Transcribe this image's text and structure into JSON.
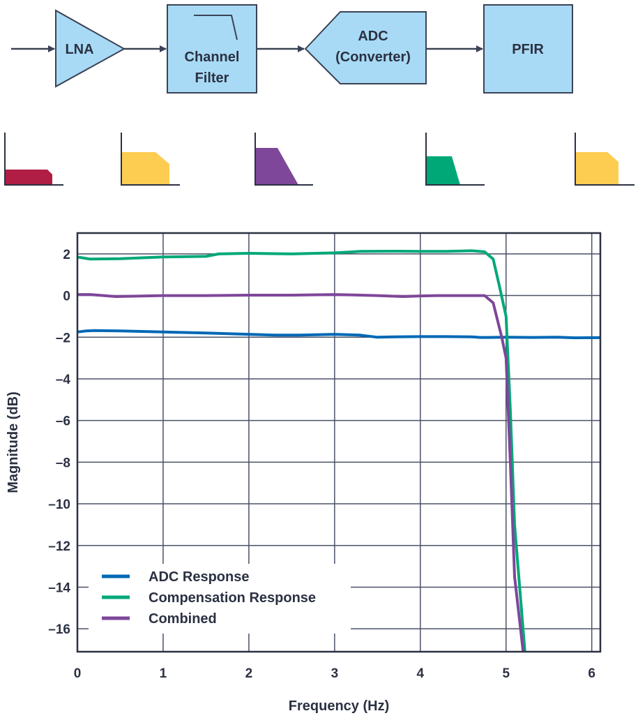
{
  "block_diagram": {
    "blocks": [
      {
        "id": "lna",
        "lines": [
          "LNA"
        ]
      },
      {
        "id": "channel-filter",
        "lines": [
          "Channel",
          "Filter"
        ]
      },
      {
        "id": "adc",
        "lines": [
          "ADC",
          "(Converter)"
        ]
      },
      {
        "id": "pfir",
        "lines": [
          "PFIR"
        ]
      }
    ],
    "block_fill": "#a8daf5",
    "block_stroke": "#3a4256"
  },
  "response_sketches": [
    {
      "id": "lna",
      "color": "#b01e45"
    },
    {
      "id": "channel-filter",
      "color": "#fdcd52"
    },
    {
      "id": "adc",
      "color": "#7e479a"
    },
    {
      "id": "pfir-input",
      "color": "#00a878"
    },
    {
      "id": "pfir-output",
      "color": "#fdcd52"
    }
  ],
  "chart_data": {
    "type": "line",
    "xlabel": "Frequency (Hz)",
    "ylabel": "Magnitude (dB)",
    "xlim": [
      0,
      6.1
    ],
    "ylim": [
      -17.1,
      3.0
    ],
    "xticks": [
      0,
      1,
      2,
      3,
      4,
      5,
      6
    ],
    "yticks": [
      2,
      0,
      -2,
      -4,
      -6,
      -8,
      -10,
      -12,
      -14,
      -16
    ],
    "tick_labels": {
      "x": [
        "0",
        "1",
        "2",
        "3",
        "4",
        "5",
        "6"
      ],
      "y": [
        "2",
        "0",
        "–2",
        "–4",
        "–6",
        "–8",
        "–10",
        "–12",
        "–14",
        "–16"
      ]
    },
    "grid": true,
    "legend_position": "bottom-left",
    "series": [
      {
        "name": "ADC Response",
        "color": "#0068b5",
        "x": [
          0,
          0.1,
          0.2,
          0.5,
          1.0,
          1.5,
          2.0,
          2.3,
          2.6,
          3.0,
          3.3,
          3.5,
          3.7,
          4.0,
          4.3,
          4.6,
          4.7,
          4.8,
          5.0,
          5.3,
          5.6,
          5.8,
          6.1
        ],
        "y": [
          -1.75,
          -1.7,
          -1.68,
          -1.7,
          -1.75,
          -1.8,
          -1.86,
          -1.9,
          -1.9,
          -1.86,
          -1.9,
          -2.0,
          -1.98,
          -1.97,
          -1.97,
          -1.98,
          -2.01,
          -2.01,
          -2.0,
          -2.01,
          -2.0,
          -2.03,
          -2.02
        ]
      },
      {
        "name": "Compensation Response",
        "color": "#00a878",
        "x": [
          0,
          0.15,
          0.5,
          1.0,
          1.5,
          1.65,
          2.0,
          2.5,
          3.0,
          3.3,
          3.7,
          4.0,
          4.3,
          4.6,
          4.75,
          4.85,
          4.92,
          5.0,
          5.05,
          5.1,
          5.22
        ],
        "y": [
          1.85,
          1.75,
          1.77,
          1.85,
          1.88,
          2.0,
          2.03,
          2.0,
          2.05,
          2.12,
          2.13,
          2.12,
          2.12,
          2.15,
          2.1,
          1.75,
          0.5,
          -1.0,
          -5.5,
          -11.0,
          -17.1
        ]
      },
      {
        "name": "Combined",
        "color": "#7e479a",
        "x": [
          0,
          0.15,
          0.45,
          1.0,
          1.5,
          2.0,
          2.5,
          3.0,
          3.5,
          3.8,
          4.0,
          4.2,
          4.5,
          4.75,
          4.85,
          4.95,
          5.0,
          5.05,
          5.1,
          5.2
        ],
        "y": [
          0.05,
          0.05,
          -0.05,
          0.0,
          0.0,
          0.02,
          0.02,
          0.05,
          0.0,
          -0.05,
          -0.02,
          0.0,
          0.0,
          0.0,
          -0.35,
          -2.0,
          -3.0,
          -8.0,
          -13.5,
          -17.1
        ]
      }
    ]
  }
}
